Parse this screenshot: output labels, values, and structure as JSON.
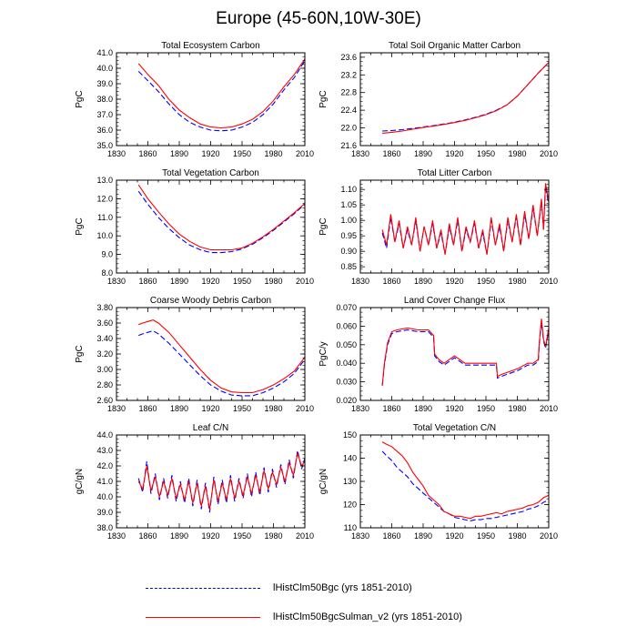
{
  "title": "Europe (45-60N,10W-30E)",
  "series_styles": [
    {
      "name": "lHistClm50Bgc (yrs 1851-2010)",
      "color": "#0000ff",
      "dash": "dashed"
    },
    {
      "name": "lHistClm50BgcSulman_v2 (yrs 1851-2010)",
      "color": "#ff0000",
      "dash": "solid"
    }
  ],
  "legend": {
    "entries": [
      {
        "label": "lHistClm50Bgc (yrs 1851-2010)",
        "color": "#0000ff"
      },
      {
        "label": "lHistClm50BgcSulman_v2 (yrs 1851-2010)",
        "color": "#ff0000"
      }
    ]
  },
  "chart_data": [
    {
      "type": "line",
      "title": "Total Ecosystem Carbon",
      "ylabel": "PgC",
      "xlim": [
        1830,
        2010
      ],
      "ylim": [
        35,
        41
      ],
      "xticks": [
        1830,
        1860,
        1890,
        1920,
        1950,
        1980,
        2010
      ],
      "xtick_labels": [
        "1830",
        "1860",
        "1890",
        "1920",
        "1950",
        "1980",
        "2010"
      ],
      "yticks": [
        35,
        36,
        37,
        38,
        39,
        40,
        41
      ],
      "ytick_labels": [
        "35.0",
        "36.0",
        "37.0",
        "38.0",
        "39.0",
        "40.0",
        "41.0"
      ],
      "x": [
        1851,
        1860,
        1870,
        1880,
        1890,
        1900,
        1910,
        1920,
        1930,
        1940,
        1950,
        1960,
        1970,
        1980,
        1990,
        2000,
        2010
      ],
      "series": [
        {
          "values": [
            39.8,
            39.2,
            38.5,
            37.7,
            37.0,
            36.5,
            36.2,
            36.0,
            35.95,
            36.0,
            36.2,
            36.5,
            37.0,
            37.7,
            38.6,
            39.4,
            40.5
          ]
        },
        {
          "values": [
            40.3,
            39.6,
            38.9,
            38.0,
            37.3,
            36.8,
            36.4,
            36.2,
            36.15,
            36.2,
            36.4,
            36.7,
            37.2,
            37.9,
            38.8,
            39.6,
            40.6
          ]
        }
      ]
    },
    {
      "type": "line",
      "title": "Total Soil Organic Matter Carbon",
      "ylabel": "PgC",
      "xlim": [
        1830,
        2010
      ],
      "ylim": [
        21.6,
        23.7
      ],
      "xticks": [
        1830,
        1860,
        1890,
        1920,
        1950,
        1980,
        2010
      ],
      "xtick_labels": [
        "1830",
        "1860",
        "1890",
        "1920",
        "1950",
        "1980",
        "2010"
      ],
      "yticks": [
        21.6,
        22.0,
        22.4,
        22.8,
        23.2,
        23.6
      ],
      "ytick_labels": [
        "21.6",
        "22.0",
        "22.4",
        "22.8",
        "23.2",
        "23.6"
      ],
      "x": [
        1851,
        1860,
        1870,
        1880,
        1890,
        1900,
        1910,
        1920,
        1930,
        1940,
        1950,
        1960,
        1970,
        1980,
        1990,
        2000,
        2010
      ],
      "series": [
        {
          "values": [
            21.93,
            21.94,
            21.96,
            21.99,
            22.02,
            22.05,
            22.09,
            22.13,
            22.18,
            22.24,
            22.31,
            22.4,
            22.52,
            22.72,
            22.98,
            23.24,
            23.48
          ]
        },
        {
          "values": [
            21.88,
            21.9,
            21.93,
            21.97,
            22.01,
            22.04,
            22.08,
            22.12,
            22.17,
            22.23,
            22.3,
            22.39,
            22.52,
            22.72,
            22.98,
            23.24,
            23.48
          ]
        }
      ]
    },
    {
      "type": "line",
      "title": "Total Vegetation Carbon",
      "ylabel": "PgC",
      "xlim": [
        1830,
        2010
      ],
      "ylim": [
        8,
        13
      ],
      "xticks": [
        1830,
        1860,
        1890,
        1920,
        1950,
        1980,
        2010
      ],
      "xtick_labels": [
        "1830",
        "1860",
        "1890",
        "1920",
        "1950",
        "1980",
        "2010"
      ],
      "yticks": [
        8,
        9,
        10,
        11,
        12,
        13
      ],
      "ytick_labels": [
        "8.0",
        "9.0",
        "10.0",
        "11.0",
        "12.0",
        "13.0"
      ],
      "x": [
        1851,
        1860,
        1870,
        1880,
        1890,
        1900,
        1910,
        1920,
        1930,
        1940,
        1950,
        1960,
        1970,
        1980,
        1990,
        2000,
        2010
      ],
      "series": [
        {
          "values": [
            12.4,
            11.7,
            11.0,
            10.4,
            9.9,
            9.5,
            9.25,
            9.1,
            9.1,
            9.15,
            9.3,
            9.55,
            9.9,
            10.3,
            10.75,
            11.2,
            11.7
          ]
        },
        {
          "values": [
            12.75,
            12.0,
            11.3,
            10.65,
            10.1,
            9.7,
            9.4,
            9.25,
            9.25,
            9.25,
            9.35,
            9.6,
            9.95,
            10.35,
            10.8,
            11.25,
            11.75
          ]
        }
      ]
    },
    {
      "type": "line",
      "title": "Total Litter Carbon",
      "ylabel": "PgC",
      "xlim": [
        1830,
        2010
      ],
      "ylim": [
        0.83,
        1.13
      ],
      "xticks": [
        1830,
        1860,
        1890,
        1920,
        1950,
        1980,
        2010
      ],
      "xtick_labels": [
        "1830",
        "1860",
        "1890",
        "1920",
        "1950",
        "1980",
        "2010"
      ],
      "yticks": [
        0.85,
        0.9,
        0.95,
        1.0,
        1.05,
        1.1
      ],
      "ytick_labels": [
        "0.85",
        "0.90",
        "0.95",
        "1.00",
        "1.05",
        "1.10"
      ],
      "x": [
        1851,
        1855,
        1859,
        1863,
        1867,
        1871,
        1875,
        1879,
        1883,
        1887,
        1891,
        1895,
        1899,
        1903,
        1907,
        1911,
        1915,
        1919,
        1923,
        1927,
        1931,
        1935,
        1939,
        1943,
        1947,
        1951,
        1955,
        1959,
        1963,
        1967,
        1971,
        1975,
        1979,
        1983,
        1987,
        1991,
        1995,
        1999,
        2003,
        2005,
        2007,
        2010
      ],
      "series": [
        {
          "values": [
            0.96,
            0.91,
            1.01,
            0.93,
            0.99,
            0.91,
            0.97,
            0.92,
            1.0,
            0.9,
            0.98,
            0.92,
            0.99,
            0.91,
            0.96,
            0.89,
            0.98,
            0.92,
            1.0,
            0.9,
            0.97,
            0.93,
            0.99,
            0.91,
            0.96,
            0.89,
            1.0,
            0.92,
            0.98,
            0.9,
            1.0,
            0.93,
            1.01,
            0.92,
            1.02,
            0.94,
            1.04,
            0.95,
            1.06,
            0.97,
            1.11,
            1.05
          ]
        },
        {
          "values": [
            0.97,
            0.92,
            1.02,
            0.93,
            1.0,
            0.91,
            0.98,
            0.92,
            1.01,
            0.9,
            0.98,
            0.92,
            1.0,
            0.91,
            0.97,
            0.89,
            0.99,
            0.92,
            1.01,
            0.9,
            0.98,
            0.93,
            1.0,
            0.91,
            0.97,
            0.89,
            1.01,
            0.92,
            0.99,
            0.9,
            1.01,
            0.93,
            1.02,
            0.92,
            1.03,
            0.94,
            1.05,
            0.95,
            1.07,
            0.97,
            1.12,
            1.06
          ]
        }
      ]
    },
    {
      "type": "line",
      "title": "Coarse Woody Debris Carbon",
      "ylabel": "PgC",
      "xlim": [
        1830,
        2010
      ],
      "ylim": [
        2.6,
        3.8
      ],
      "xticks": [
        1830,
        1860,
        1890,
        1920,
        1950,
        1980,
        2010
      ],
      "xtick_labels": [
        "1830",
        "1860",
        "1890",
        "1920",
        "1950",
        "1980",
        "2010"
      ],
      "yticks": [
        2.6,
        2.8,
        3.0,
        3.2,
        3.4,
        3.6,
        3.8
      ],
      "ytick_labels": [
        "2.60",
        "2.80",
        "3.00",
        "3.20",
        "3.40",
        "3.60",
        "3.80"
      ],
      "x": [
        1851,
        1855,
        1860,
        1865,
        1870,
        1880,
        1890,
        1900,
        1910,
        1920,
        1930,
        1940,
        1950,
        1960,
        1970,
        1980,
        1990,
        2000,
        2010
      ],
      "series": [
        {
          "values": [
            3.44,
            3.46,
            3.48,
            3.5,
            3.46,
            3.34,
            3.2,
            3.06,
            2.92,
            2.8,
            2.72,
            2.67,
            2.66,
            2.66,
            2.7,
            2.76,
            2.84,
            2.95,
            3.13
          ]
        },
        {
          "values": [
            3.58,
            3.6,
            3.62,
            3.64,
            3.6,
            3.48,
            3.32,
            3.16,
            3.0,
            2.86,
            2.76,
            2.71,
            2.7,
            2.7,
            2.74,
            2.8,
            2.88,
            2.98,
            3.16
          ]
        }
      ]
    },
    {
      "type": "line",
      "title": "Land Cover Change Flux",
      "ylabel": "PgC/y",
      "xlim": [
        1830,
        2010
      ],
      "ylim": [
        0.02,
        0.07
      ],
      "xticks": [
        1830,
        1860,
        1890,
        1920,
        1950,
        1980,
        2010
      ],
      "xtick_labels": [
        "1830",
        "1860",
        "1890",
        "1920",
        "1950",
        "1980",
        "2010"
      ],
      "yticks": [
        0.02,
        0.03,
        0.04,
        0.05,
        0.06,
        0.07
      ],
      "ytick_labels": [
        "0.020",
        "0.030",
        "0.040",
        "0.050",
        "0.060",
        "0.070"
      ],
      "x": [
        1851,
        1853,
        1856,
        1860,
        1865,
        1875,
        1885,
        1895,
        1900,
        1901,
        1905,
        1910,
        1920,
        1930,
        1940,
        1950,
        1960,
        1961,
        1965,
        1970,
        1980,
        1990,
        1995,
        2000,
        2001,
        2003,
        2005,
        2007,
        2010
      ],
      "series": [
        {
          "values": [
            0.028,
            0.039,
            0.05,
            0.056,
            0.057,
            0.058,
            0.057,
            0.057,
            0.054,
            0.044,
            0.041,
            0.039,
            0.043,
            0.039,
            0.039,
            0.039,
            0.039,
            0.032,
            0.033,
            0.034,
            0.036,
            0.039,
            0.039,
            0.041,
            0.05,
            0.062,
            0.052,
            0.048,
            0.058
          ]
        },
        {
          "values": [
            0.028,
            0.04,
            0.051,
            0.057,
            0.058,
            0.059,
            0.058,
            0.058,
            0.055,
            0.045,
            0.042,
            0.04,
            0.044,
            0.04,
            0.04,
            0.04,
            0.04,
            0.033,
            0.034,
            0.035,
            0.037,
            0.04,
            0.04,
            0.042,
            0.051,
            0.064,
            0.053,
            0.049,
            0.059
          ]
        }
      ]
    },
    {
      "type": "line",
      "title": "Leaf C/N",
      "ylabel": "gC/gN",
      "xlim": [
        1830,
        2010
      ],
      "ylim": [
        38,
        44
      ],
      "xticks": [
        1830,
        1860,
        1890,
        1920,
        1950,
        1980,
        2010
      ],
      "xtick_labels": [
        "1830",
        "1860",
        "1890",
        "1920",
        "1950",
        "1980",
        "2010"
      ],
      "yticks": [
        38,
        39,
        40,
        41,
        42,
        43,
        44
      ],
      "ytick_labels": [
        "38.0",
        "39.0",
        "40.0",
        "41.0",
        "42.0",
        "43.0",
        "44.0"
      ],
      "x": [
        1851,
        1855,
        1859,
        1863,
        1867,
        1871,
        1875,
        1879,
        1883,
        1887,
        1891,
        1895,
        1899,
        1903,
        1907,
        1911,
        1915,
        1919,
        1923,
        1927,
        1931,
        1935,
        1939,
        1943,
        1947,
        1951,
        1955,
        1959,
        1963,
        1967,
        1971,
        1975,
        1979,
        1983,
        1987,
        1991,
        1995,
        1999,
        2003,
        2007,
        2010
      ],
      "series": [
        {
          "values": [
            41.2,
            40.3,
            42.3,
            40.2,
            41.5,
            39.8,
            41.2,
            39.9,
            41.4,
            39.7,
            41.0,
            39.6,
            41.2,
            39.4,
            41.1,
            39.2,
            40.9,
            39.0,
            41.3,
            39.5,
            41.1,
            39.6,
            41.4,
            39.7,
            41.2,
            39.9,
            41.5,
            40.0,
            41.6,
            40.1,
            41.9,
            40.3,
            41.8,
            40.6,
            42.1,
            40.8,
            42.4,
            41.2,
            43.0,
            41.8,
            42.5
          ]
        },
        {
          "values": [
            41.0,
            40.5,
            42.0,
            40.4,
            41.3,
            40.0,
            41.0,
            40.1,
            41.2,
            39.9,
            40.8,
            39.8,
            41.0,
            39.6,
            40.9,
            39.4,
            40.7,
            39.2,
            41.1,
            39.7,
            40.9,
            39.8,
            41.2,
            39.9,
            41.0,
            40.1,
            41.3,
            40.2,
            41.4,
            40.3,
            41.7,
            40.5,
            41.6,
            40.8,
            41.9,
            41.0,
            42.2,
            41.4,
            42.8,
            42.0,
            42.3
          ]
        }
      ]
    },
    {
      "type": "line",
      "title": "Total Vegetation C/N",
      "ylabel": "gC/gN",
      "xlim": [
        1830,
        2010
      ],
      "ylim": [
        110,
        150
      ],
      "xticks": [
        1830,
        1860,
        1890,
        1920,
        1950,
        1980,
        2010
      ],
      "xtick_labels": [
        "1830",
        "1860",
        "1890",
        "1920",
        "1950",
        "1980",
        "2010"
      ],
      "yticks": [
        110,
        120,
        130,
        140,
        150
      ],
      "ytick_labels": [
        "110",
        "120",
        "130",
        "140",
        "150"
      ],
      "x": [
        1851,
        1855,
        1860,
        1865,
        1870,
        1875,
        1880,
        1885,
        1890,
        1895,
        1900,
        1905,
        1910,
        1915,
        1920,
        1925,
        1930,
        1935,
        1940,
        1945,
        1950,
        1955,
        1960,
        1965,
        1970,
        1975,
        1980,
        1985,
        1990,
        1995,
        2000,
        2005,
        2010
      ],
      "series": [
        {
          "values": [
            143,
            141,
            139,
            136,
            134,
            132,
            129,
            127,
            125,
            123,
            121,
            119,
            117,
            116,
            114.5,
            114,
            113.5,
            113,
            113.5,
            113.5,
            114,
            114,
            114.5,
            115,
            115.5,
            116,
            116.5,
            117,
            118,
            118.5,
            119.5,
            121,
            122
          ]
        },
        {
          "values": [
            147,
            146,
            145,
            143,
            141,
            138,
            134,
            131,
            128,
            124,
            122,
            120,
            117,
            116,
            115,
            115,
            114.5,
            114,
            115,
            115,
            115.5,
            116,
            116.5,
            116,
            117,
            117.5,
            118,
            118.5,
            119.5,
            120,
            121,
            123,
            124
          ]
        }
      ]
    }
  ]
}
